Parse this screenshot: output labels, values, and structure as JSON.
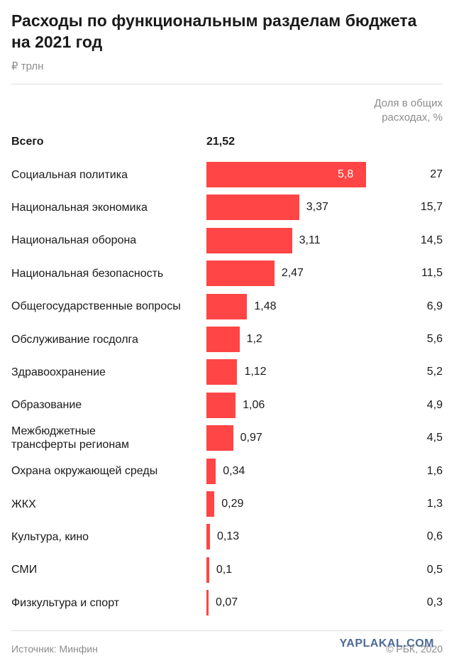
{
  "header": {
    "title": "Расходы по функциональным разделам бюджета на 2021 год",
    "unit": "₽ трлн",
    "share_header": "Доля в общих расходах, %"
  },
  "total": {
    "label": "Всего",
    "value": "21,52"
  },
  "chart_data": {
    "type": "bar",
    "orientation": "horizontal",
    "title": "Расходы по функциональным разделам бюджета на 2021 год",
    "unit": "₽ трлн",
    "categories": [
      "Социальная политика",
      "Национальная экономика",
      "Национальная оборона",
      "Национальная безопасность",
      "Общегосударственные вопросы",
      "Обслуживание госдолга",
      "Здравоохранение",
      "Образование",
      "Межбюджетные трансферты регионам",
      "Охрана окружающей среды",
      "ЖКХ",
      "Культура, кино",
      "СМИ",
      "Физкультура и спорт"
    ],
    "values": [
      5.8,
      3.37,
      3.11,
      2.47,
      1.48,
      1.2,
      1.12,
      1.06,
      0.97,
      0.34,
      0.29,
      0.13,
      0.1,
      0.07
    ],
    "value_labels": [
      "5,8",
      "3,37",
      "3,11",
      "2,47",
      "1,48",
      "1,2",
      "1,12",
      "1,06",
      "0,97",
      "0,34",
      "0,29",
      "0,13",
      "0,1",
      "0,07"
    ],
    "share_labels": [
      "27",
      "15,7",
      "14,5",
      "11,5",
      "6,9",
      "5,6",
      "5,2",
      "4,9",
      "4,5",
      "1,6",
      "1,3",
      "0,6",
      "0,5",
      "0,3"
    ],
    "bar_color": "#ff4545",
    "grid": false
  },
  "footer": {
    "source": "Источник: Минфин",
    "credit": "© РБК, 2020",
    "watermark": "YAPLAKAL.COM"
  }
}
